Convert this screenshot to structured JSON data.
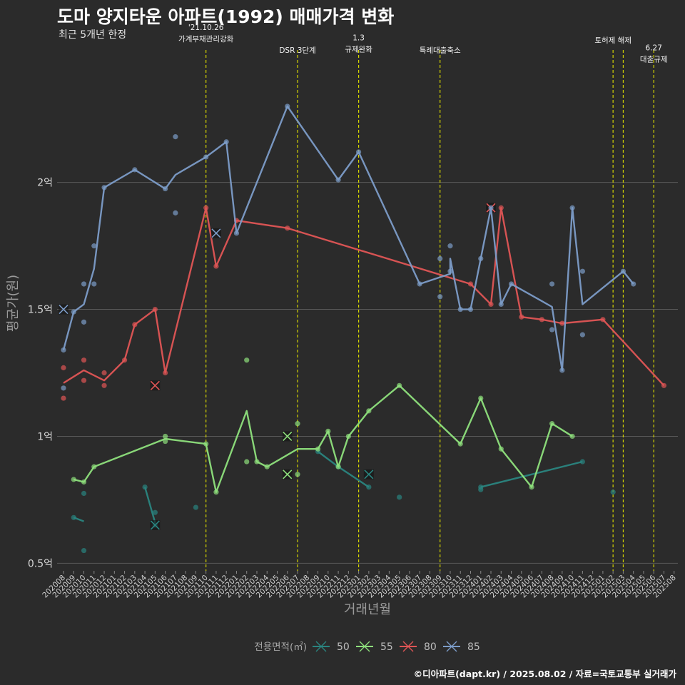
{
  "header": {
    "title": "도마 양지타운 아파트(1992) 매매가격 변화",
    "subtitle": "최근 5개년 한정"
  },
  "footer": {
    "credit": "©디아파트(dapt.kr) / 2025.08.02 / 자료=국토교통부 실거래가"
  },
  "colors": {
    "background": "#2b2b2b",
    "grid": "#5a5a5a",
    "event_line": "#d4d400",
    "s50": "#2a8580",
    "s55": "#8ee07c",
    "s80": "#e05555",
    "s85": "#7c9cc8"
  },
  "chart_data": {
    "type": "line",
    "xlabel": "거래년월",
    "ylabel": "평균가(원)",
    "ylim": [
      0.47,
      2.55
    ],
    "y_unit": "억",
    "y_ticks": [
      {
        "value": 0.5,
        "label": "0.5억"
      },
      {
        "value": 1.0,
        "label": "1억"
      },
      {
        "value": 1.5,
        "label": "1.5억"
      },
      {
        "value": 2.0,
        "label": "2억"
      }
    ],
    "x_categories": [
      "202008",
      "202009",
      "202010",
      "202011",
      "202012",
      "202101",
      "202102",
      "202103",
      "202104",
      "202105",
      "202106",
      "202107",
      "202108",
      "202109",
      "202110",
      "202111",
      "202112",
      "202201",
      "202202",
      "202203",
      "202204",
      "202205",
      "202206",
      "202207",
      "202208",
      "202209",
      "202210",
      "202211",
      "202212",
      "202301",
      "202302",
      "202303",
      "202304",
      "202305",
      "202306",
      "202307",
      "202308",
      "202309",
      "202310",
      "202311",
      "202312",
      "202401",
      "202402",
      "202403",
      "202404",
      "202405",
      "202406",
      "202407",
      "202408",
      "202409",
      "202410",
      "202411",
      "202412",
      "202501",
      "202502",
      "202503",
      "202504",
      "202505",
      "202506",
      "202507",
      "202508"
    ],
    "grid": true,
    "legend": {
      "title": "전용면적(㎡)",
      "position": "bottom",
      "entries": [
        "50",
        "55",
        "80",
        "85"
      ]
    },
    "events": [
      {
        "x": 14.0,
        "lines": [
          "'21.10.26",
          "가계부채관리강화"
        ],
        "label_y": 2.6
      },
      {
        "x": 23.0,
        "lines": [
          "DSR 3단계"
        ],
        "label_y": 2.51
      },
      {
        "x": 29.0,
        "lines": [
          "1.3",
          "규제완화"
        ],
        "label_y": 2.56
      },
      {
        "x": 37.0,
        "lines": [
          "특례대출축소"
        ],
        "label_y": 2.51
      },
      {
        "x": 54.0,
        "lines": [
          "토허제 해제"
        ],
        "label_y": 2.55
      },
      {
        "x": 55.0,
        "lines": [],
        "label_y": 0
      },
      {
        "x": 58.0,
        "lines": [
          "6.27",
          "대출규제"
        ],
        "label_y": 2.52
      }
    ],
    "series": [
      {
        "name": "50",
        "color_key": "s50",
        "line": [
          [
            1,
            0.68
          ],
          [
            2,
            0.665
          ],
          [
            null,
            null
          ],
          [
            8,
            0.8
          ],
          [
            9,
            0.66
          ],
          [
            null,
            null
          ],
          [
            25,
            0.94
          ],
          [
            27,
            0.88
          ],
          [
            30,
            0.8
          ],
          [
            null,
            null
          ],
          [
            41,
            0.8
          ],
          [
            51,
            0.9
          ]
        ],
        "points": [
          [
            1,
            0.68
          ],
          [
            2,
            0.775
          ],
          [
            2,
            0.55
          ],
          [
            8,
            0.8
          ],
          [
            9,
            0.7
          ],
          [
            9,
            0.65
          ],
          [
            13,
            0.72
          ],
          [
            25,
            0.94
          ],
          [
            27,
            0.88
          ],
          [
            30,
            0.8
          ],
          [
            33,
            0.76
          ],
          [
            41,
            0.79
          ],
          [
            41,
            0.8
          ],
          [
            51,
            0.9
          ],
          [
            54,
            0.78
          ]
        ],
        "crosses": [
          [
            9,
            0.65
          ],
          [
            30,
            0.85
          ]
        ]
      },
      {
        "name": "55",
        "color_key": "s55",
        "line": [
          [
            1,
            0.83
          ],
          [
            2,
            0.82
          ],
          [
            3,
            0.88
          ],
          [
            10,
            0.99
          ],
          [
            14,
            0.97
          ],
          [
            15,
            0.78
          ],
          [
            18,
            1.1
          ],
          [
            19,
            0.9
          ],
          [
            20,
            0.88
          ],
          [
            23,
            0.95
          ],
          [
            25,
            0.95
          ],
          [
            26,
            1.02
          ],
          [
            27,
            0.88
          ],
          [
            28,
            1.0
          ],
          [
            30,
            1.1
          ],
          [
            33,
            1.2
          ],
          [
            39,
            0.97
          ],
          [
            41,
            1.15
          ],
          [
            43,
            0.95
          ],
          [
            46,
            0.8
          ],
          [
            48,
            1.05
          ],
          [
            50,
            1.0
          ]
        ],
        "points": [
          [
            1,
            0.83
          ],
          [
            2,
            0.82
          ],
          [
            3,
            0.88
          ],
          [
            10,
            1.0
          ],
          [
            10,
            0.98
          ],
          [
            14,
            0.97
          ],
          [
            15,
            0.78
          ],
          [
            18,
            0.9
          ],
          [
            18,
            1.3
          ],
          [
            19,
            0.9
          ],
          [
            20,
            0.88
          ],
          [
            23,
            1.05
          ],
          [
            23,
            0.85
          ],
          [
            25,
            0.95
          ],
          [
            26,
            1.02
          ],
          [
            27,
            0.88
          ],
          [
            28,
            1.0
          ],
          [
            30,
            1.1
          ],
          [
            33,
            1.2
          ],
          [
            39,
            0.97
          ],
          [
            41,
            1.15
          ],
          [
            43,
            0.95
          ],
          [
            46,
            0.8
          ],
          [
            48,
            1.05
          ],
          [
            50,
            1.0
          ]
        ],
        "crosses": [
          [
            22,
            1.0
          ],
          [
            22,
            0.85
          ]
        ]
      },
      {
        "name": "80",
        "color_key": "s80",
        "line": [
          [
            0,
            1.21
          ],
          [
            2,
            1.26
          ],
          [
            4,
            1.22
          ],
          [
            6,
            1.3
          ],
          [
            7,
            1.44
          ],
          [
            9,
            1.5
          ],
          [
            10,
            1.25
          ],
          [
            14,
            1.9
          ],
          [
            15,
            1.67
          ],
          [
            17,
            1.85
          ],
          [
            22,
            1.82
          ],
          [
            40,
            1.6
          ],
          [
            42,
            1.52
          ],
          [
            43,
            1.9
          ],
          [
            45,
            1.47
          ],
          [
            47,
            1.46
          ],
          [
            49,
            1.445
          ],
          [
            53,
            1.46
          ],
          [
            59,
            1.2
          ]
        ],
        "points": [
          [
            0,
            1.27
          ],
          [
            0,
            1.15
          ],
          [
            2,
            1.3
          ],
          [
            2,
            1.22
          ],
          [
            4,
            1.25
          ],
          [
            4,
            1.2
          ],
          [
            6,
            1.3
          ],
          [
            7,
            1.44
          ],
          [
            9,
            1.5
          ],
          [
            10,
            1.25
          ],
          [
            14,
            1.9
          ],
          [
            15,
            1.67
          ],
          [
            17,
            1.85
          ],
          [
            22,
            1.82
          ],
          [
            40,
            1.6
          ],
          [
            42,
            1.52
          ],
          [
            43,
            1.9
          ],
          [
            45,
            1.47
          ],
          [
            47,
            1.46
          ],
          [
            49,
            1.445
          ],
          [
            53,
            1.46
          ],
          [
            59,
            1.2
          ]
        ],
        "crosses": [
          [
            9,
            1.2
          ],
          [
            42,
            1.9
          ]
        ]
      },
      {
        "name": "85",
        "color_key": "s85",
        "line": [
          [
            0,
            1.34
          ],
          [
            1,
            1.49
          ],
          [
            2,
            1.52
          ],
          [
            3,
            1.66
          ],
          [
            4,
            1.98
          ],
          [
            7,
            2.05
          ],
          [
            10,
            1.975
          ],
          [
            11,
            2.03
          ],
          [
            14,
            2.1
          ],
          [
            16,
            2.16
          ],
          [
            17,
            1.8
          ],
          [
            22,
            2.3
          ],
          [
            27,
            2.01
          ],
          [
            29,
            2.12
          ],
          [
            35,
            1.6
          ],
          [
            38,
            1.64
          ],
          [
            38,
            1.7
          ],
          [
            39,
            1.5
          ],
          [
            40,
            1.5
          ],
          [
            41,
            1.7
          ],
          [
            42,
            1.9
          ],
          [
            43,
            1.52
          ],
          [
            44,
            1.6
          ],
          [
            48,
            1.51
          ],
          [
            49,
            1.26
          ],
          [
            50,
            1.9
          ],
          [
            51,
            1.52
          ],
          [
            55,
            1.65
          ],
          [
            56,
            1.6
          ]
        ],
        "points": [
          [
            0,
            1.19
          ],
          [
            0,
            1.34
          ],
          [
            1,
            1.49
          ],
          [
            2,
            1.6
          ],
          [
            2,
            1.45
          ],
          [
            3,
            1.75
          ],
          [
            3,
            1.6
          ],
          [
            4,
            1.98
          ],
          [
            7,
            2.05
          ],
          [
            10,
            1.975
          ],
          [
            11,
            2.18
          ],
          [
            11,
            1.88
          ],
          [
            14,
            2.1
          ],
          [
            16,
            2.16
          ],
          [
            17,
            1.8
          ],
          [
            22,
            2.3
          ],
          [
            27,
            2.01
          ],
          [
            29,
            2.12
          ],
          [
            35,
            1.6
          ],
          [
            37,
            1.7
          ],
          [
            37,
            1.55
          ],
          [
            38,
            1.75
          ],
          [
            38,
            1.65
          ],
          [
            39,
            1.5
          ],
          [
            40,
            1.5
          ],
          [
            41,
            1.7
          ],
          [
            42,
            1.9
          ],
          [
            43,
            1.52
          ],
          [
            44,
            1.6
          ],
          [
            48,
            1.6
          ],
          [
            48,
            1.42
          ],
          [
            49,
            1.26
          ],
          [
            50,
            1.9
          ],
          [
            51,
            1.65
          ],
          [
            51,
            1.4
          ],
          [
            55,
            1.65
          ],
          [
            56,
            1.6
          ]
        ],
        "crosses": [
          [
            0,
            1.5
          ],
          [
            15,
            1.8
          ]
        ]
      }
    ]
  }
}
